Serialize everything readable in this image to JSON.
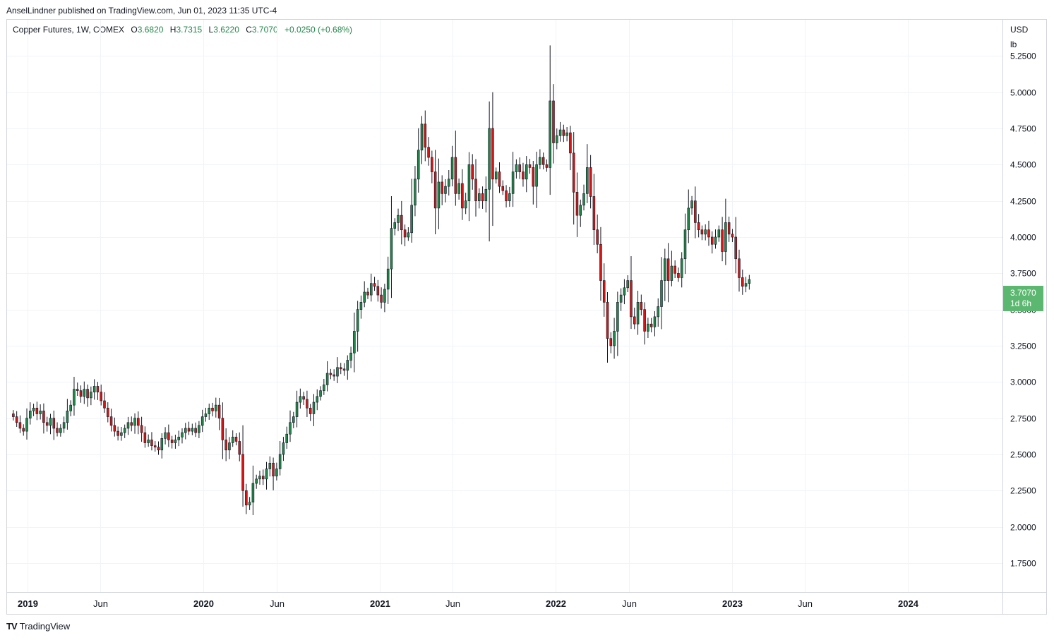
{
  "header": {
    "published": "AnselLindner published on TradingView.com, Jun 01, 2023 11:35 UTC-4"
  },
  "legend": {
    "symbol": "Copper Futures, 1W, COMEX",
    "open_label": "O",
    "open": "3.6820",
    "high_label": "H",
    "high": "3.7315",
    "low_label": "L",
    "low": "3.6220",
    "close_label": "C",
    "close": "3.7070",
    "change": "+0.0250 (+0.68%)"
  },
  "price_axis": {
    "unit_line1": "USD",
    "unit_line2": "lb"
  },
  "last_price": {
    "value": "3.7070",
    "countdown": "1d 6h"
  },
  "footer": {
    "logo": "TV",
    "brand": "TradingView"
  },
  "colors": {
    "up": "#22864a",
    "down": "#d01818",
    "badge": "#5cb870",
    "grid": "#f0f3fa"
  },
  "chart_data": {
    "type": "candlestick",
    "title": "Copper Futures, 1W, COMEX",
    "ylabel": "USD / lb",
    "ylim": [
      1.55,
      5.5
    ],
    "y_ticks": [
      "1.7500",
      "2.0000",
      "2.2500",
      "2.5000",
      "2.7500",
      "3.0000",
      "3.2500",
      "3.5000",
      "3.7500",
      "4.0000",
      "4.2500",
      "4.5000",
      "4.7500",
      "5.0000",
      "5.2500"
    ],
    "x_ticks": [
      {
        "label": "2019",
        "date": "2019-01-01",
        "bold": true
      },
      {
        "label": "Jun",
        "date": "2019-06-01",
        "bold": false
      },
      {
        "label": "2020",
        "date": "2020-01-01",
        "bold": true
      },
      {
        "label": "Jun",
        "date": "2020-06-01",
        "bold": false
      },
      {
        "label": "2021",
        "date": "2021-01-01",
        "bold": true
      },
      {
        "label": "Jun",
        "date": "2021-06-01",
        "bold": false
      },
      {
        "label": "2022",
        "date": "2022-01-01",
        "bold": true
      },
      {
        "label": "Jun",
        "date": "2022-06-01",
        "bold": false
      },
      {
        "label": "2023",
        "date": "2023-01-01",
        "bold": true
      },
      {
        "label": "Jun",
        "date": "2023-06-01",
        "bold": false
      },
      {
        "label": "2024",
        "date": "2024-01-01",
        "bold": true
      }
    ],
    "x_range": [
      "2018-11-20",
      "2024-07-15"
    ],
    "closes_start": "2018-12-03",
    "first_open": 2.78,
    "weekly_closes": [
      2.76,
      2.72,
      2.68,
      2.66,
      2.75,
      2.8,
      2.82,
      2.78,
      2.8,
      2.72,
      2.7,
      2.75,
      2.68,
      2.65,
      2.68,
      2.72,
      2.8,
      2.84,
      2.95,
      2.94,
      2.9,
      2.95,
      2.89,
      2.93,
      2.97,
      2.93,
      2.87,
      2.82,
      2.76,
      2.7,
      2.66,
      2.63,
      2.65,
      2.68,
      2.72,
      2.7,
      2.75,
      2.7,
      2.65,
      2.58,
      2.6,
      2.56,
      2.55,
      2.53,
      2.61,
      2.65,
      2.6,
      2.58,
      2.6,
      2.62,
      2.65,
      2.68,
      2.66,
      2.68,
      2.65,
      2.7,
      2.76,
      2.78,
      2.82,
      2.8,
      2.84,
      2.75,
      2.6,
      2.53,
      2.58,
      2.62,
      2.59,
      2.5,
      2.25,
      2.15,
      2.17,
      2.3,
      2.33,
      2.35,
      2.33,
      2.4,
      2.44,
      2.35,
      2.4,
      2.5,
      2.58,
      2.64,
      2.72,
      2.76,
      2.86,
      2.9,
      2.88,
      2.82,
      2.78,
      2.86,
      2.9,
      2.94,
      2.98,
      3.06,
      3.05,
      3.04,
      3.1,
      3.09,
      3.08,
      3.15,
      3.2,
      3.35,
      3.5,
      3.55,
      3.62,
      3.6,
      3.68,
      3.66,
      3.6,
      3.55,
      3.64,
      3.78,
      4.06,
      4.1,
      4.15,
      4.05,
      4.0,
      4.03,
      4.22,
      4.4,
      4.6,
      4.78,
      4.62,
      4.55,
      4.45,
      4.2,
      4.38,
      4.3,
      4.35,
      4.4,
      4.55,
      4.3,
      4.37,
      4.2,
      4.25,
      4.5,
      4.4,
      4.25,
      4.3,
      4.25,
      4.33,
      4.75,
      4.4,
      4.45,
      4.35,
      4.32,
      4.25,
      4.3,
      4.45,
      4.5,
      4.45,
      4.4,
      4.5,
      4.48,
      4.35,
      4.5,
      4.55,
      4.5,
      4.48,
      4.94,
      4.65,
      4.7,
      4.74,
      4.7,
      4.72,
      4.58,
      4.31,
      4.15,
      4.22,
      4.3,
      4.48,
      4.28,
      4.05,
      3.95,
      3.7,
      3.55,
      3.3,
      3.25,
      3.35,
      3.55,
      3.6,
      3.65,
      3.7,
      3.45,
      3.4,
      3.55,
      3.5,
      3.35,
      3.4,
      3.38,
      3.45,
      3.52,
      3.7,
      3.85,
      3.7,
      3.8,
      3.75,
      3.72,
      3.85,
      4.05,
      4.2,
      4.25,
      4.1,
      4.05,
      4.02,
      4.05,
      4.0,
      3.95,
      4.0,
      4.05,
      3.9,
      4.1,
      4.02,
      4.0,
      3.85,
      3.72,
      3.66,
      3.68,
      3.707
    ],
    "last_close": 3.707,
    "last_change": "+0.0250 (+0.68%)"
  }
}
